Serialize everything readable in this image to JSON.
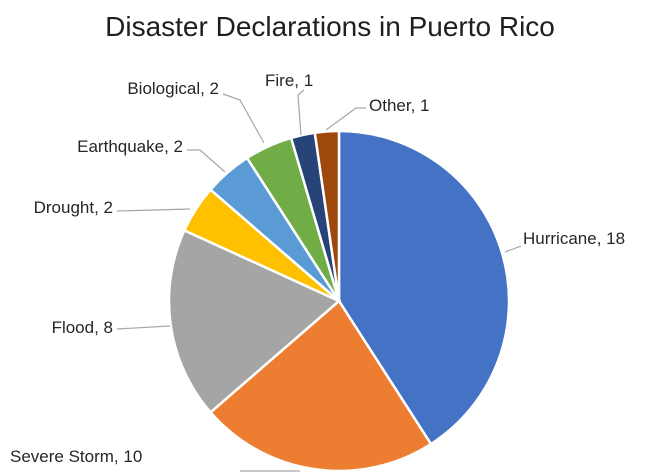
{
  "chart_data": {
    "type": "pie",
    "title": "Disaster Declarations in Puerto Rico",
    "data_labels_format": "category, value",
    "legend": "none",
    "slices": [
      {
        "label": "Hurricane",
        "value": 18,
        "color": "#4472C4"
      },
      {
        "label": "Severe Storm",
        "value": 10,
        "color": "#ED7D31"
      },
      {
        "label": "Flood",
        "value": 8,
        "color": "#A5A5A5"
      },
      {
        "label": "Drought",
        "value": 2,
        "color": "#FFC000"
      },
      {
        "label": "Earthquake",
        "value": 2,
        "color": "#5B9BD5"
      },
      {
        "label": "Biological",
        "value": 2,
        "color": "#70AD47"
      },
      {
        "label": "Fire",
        "value": 1,
        "color": "#264478"
      },
      {
        "label": "Other",
        "value": 1,
        "color": "#9E480E"
      }
    ]
  }
}
